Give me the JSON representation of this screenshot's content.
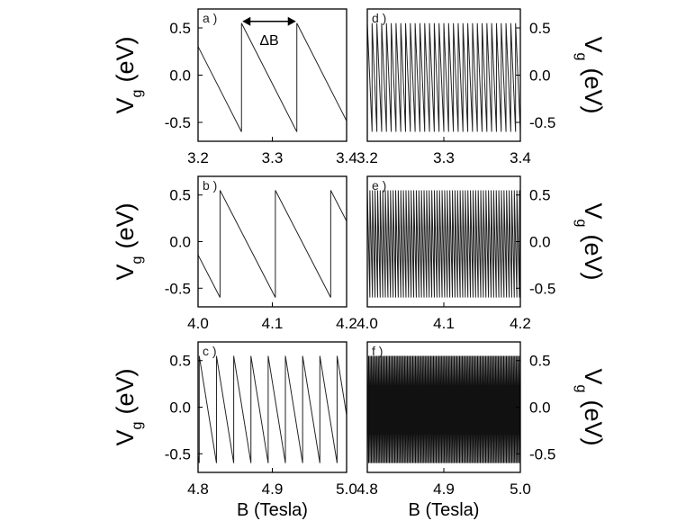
{
  "chart_data": [
    {
      "id": "a",
      "type": "line",
      "label": "a )",
      "series": [
        {
          "name": "Vg",
          "period": 0.0745,
          "phase": 3.2585,
          "ymax": 0.55,
          "ymin": -0.6
        }
      ],
      "xlim": [
        3.2,
        3.4
      ],
      "xticks": [
        "3.2",
        "3.3",
        "3.4"
      ],
      "ylim": [
        -0.7,
        0.7
      ],
      "yticks": [
        "0.5",
        "0.0",
        "-0.5"
      ],
      "ylabel_main": "V",
      "ylabel_sub": "g",
      "ylabel_unit": "(eV)",
      "xlabel": "",
      "annotation": {
        "text": "ΔB",
        "from_x": 3.2585,
        "to_x": 3.333,
        "y": 0.55
      }
    },
    {
      "id": "d",
      "type": "line",
      "label": "d )",
      "series": [
        {
          "name": "Vg",
          "period": 0.00625,
          "phase": 3.2,
          "ymax": 0.55,
          "ymin": -0.6
        }
      ],
      "xlim": [
        3.2,
        3.4
      ],
      "xticks": [
        "3.2",
        "3.3",
        "3.4"
      ],
      "ylim": [
        -0.7,
        0.7
      ],
      "yticks": [
        "0.5",
        "0.0",
        "-0.5"
      ],
      "ylabel_main": "V",
      "ylabel_sub": "g",
      "ylabel_unit": "(eV)",
      "xlabel": ""
    },
    {
      "id": "b",
      "type": "line",
      "label": "b )",
      "series": [
        {
          "name": "Vg",
          "period": 0.0745,
          "phase": 4.0296,
          "ymax": 0.55,
          "ymin": -0.6
        }
      ],
      "xlim": [
        4.0,
        4.2
      ],
      "xticks": [
        "4.0",
        "4.1",
        "4.2"
      ],
      "ylim": [
        -0.7,
        0.7
      ],
      "yticks": [
        "0.5",
        "0.0",
        "-0.5"
      ],
      "ylabel_main": "V",
      "ylabel_sub": "g",
      "ylabel_unit": "(eV)",
      "xlabel": ""
    },
    {
      "id": "e",
      "type": "line",
      "label": "e )",
      "series": [
        {
          "name": "Vg",
          "period": 0.00337,
          "phase": 4.0,
          "ymax": 0.55,
          "ymin": -0.6
        }
      ],
      "xlim": [
        4.0,
        4.2
      ],
      "xticks": [
        "4.0",
        "4.1",
        "4.2"
      ],
      "ylim": [
        -0.7,
        0.7
      ],
      "yticks": [
        "0.5",
        "0.0",
        "-0.5"
      ],
      "ylabel_main": "V",
      "ylabel_sub": "g",
      "ylabel_unit": "(eV)",
      "xlabel": ""
    },
    {
      "id": "c",
      "type": "line",
      "label": "c )",
      "series": [
        {
          "name": "Vg",
          "period": 0.0232,
          "phase": 4.8248,
          "ymax": 0.55,
          "ymin": -0.6
        }
      ],
      "xlim": [
        4.8,
        5.0
      ],
      "xticks": [
        "4.8",
        "4.9",
        "5.0"
      ],
      "ylim": [
        -0.7,
        0.7
      ],
      "yticks": [
        "0.5",
        "0.0",
        "-0.5"
      ],
      "ylabel_main": "V",
      "ylabel_sub": "g",
      "ylabel_unit": "(eV)",
      "xlabel": "B (Tesla)"
    },
    {
      "id": "f",
      "type": "line",
      "label": "f )",
      "series": [
        {
          "name": "Vg",
          "period": 0.0018,
          "phase": 4.8,
          "ymax": 0.55,
          "ymin": -0.6
        }
      ],
      "xlim": [
        4.8,
        5.0
      ],
      "xticks": [
        "4.8",
        "4.9",
        "5.0"
      ],
      "ylim": [
        -0.7,
        0.7
      ],
      "yticks": [
        "0.5",
        "0.0",
        "-0.5"
      ],
      "ylabel_main": "V",
      "ylabel_sub": "g",
      "ylabel_unit": "(eV)",
      "xlabel": "B (Tesla)"
    }
  ]
}
